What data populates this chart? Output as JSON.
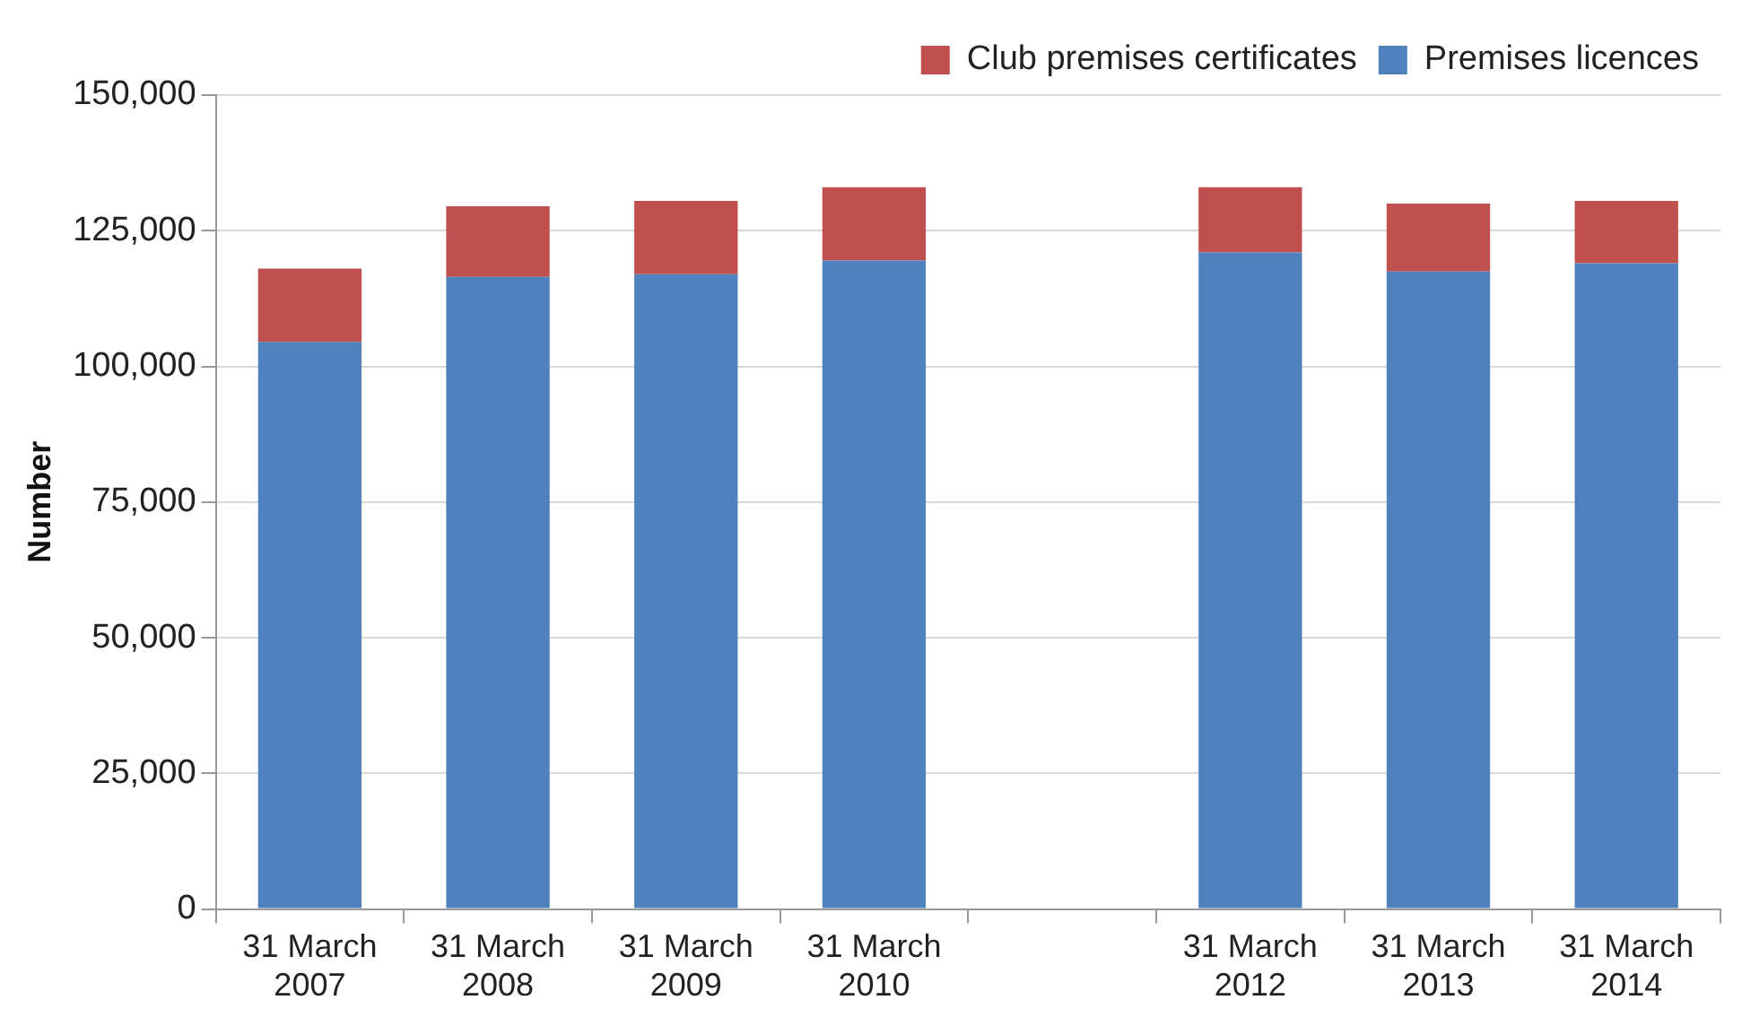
{
  "chart_data": {
    "type": "bar",
    "stacked": true,
    "ylabel": "Number",
    "categories": [
      "31 March 2007",
      "31 March 2008",
      "31 March 2009",
      "31 March 2010",
      null,
      "31 March 2012",
      "31 March 2013",
      "31 March 2014"
    ],
    "series": [
      {
        "name": "Premises licences",
        "color": "#4f81bd",
        "values": [
          104500,
          116500,
          117000,
          119500,
          null,
          121000,
          117500,
          119000
        ]
      },
      {
        "name": "Club premises certificates",
        "color": "#c0504d",
        "values": [
          13500,
          13000,
          13500,
          13500,
          null,
          12000,
          12500,
          11500
        ]
      }
    ],
    "ylim": [
      0,
      150000
    ],
    "yticks": [
      0,
      {
        "value": 25000,
        "label": "25,000"
      },
      {
        "value": 50000,
        "label": "50,000"
      },
      {
        "value": 75000,
        "label": "75,000"
      },
      {
        "value": 100000,
        "label": "100,000"
      },
      {
        "value": 125000,
        "label": "125,000"
      },
      {
        "value": 150000,
        "label": "150,000"
      }
    ],
    "grid": "y",
    "legend": "top right"
  }
}
